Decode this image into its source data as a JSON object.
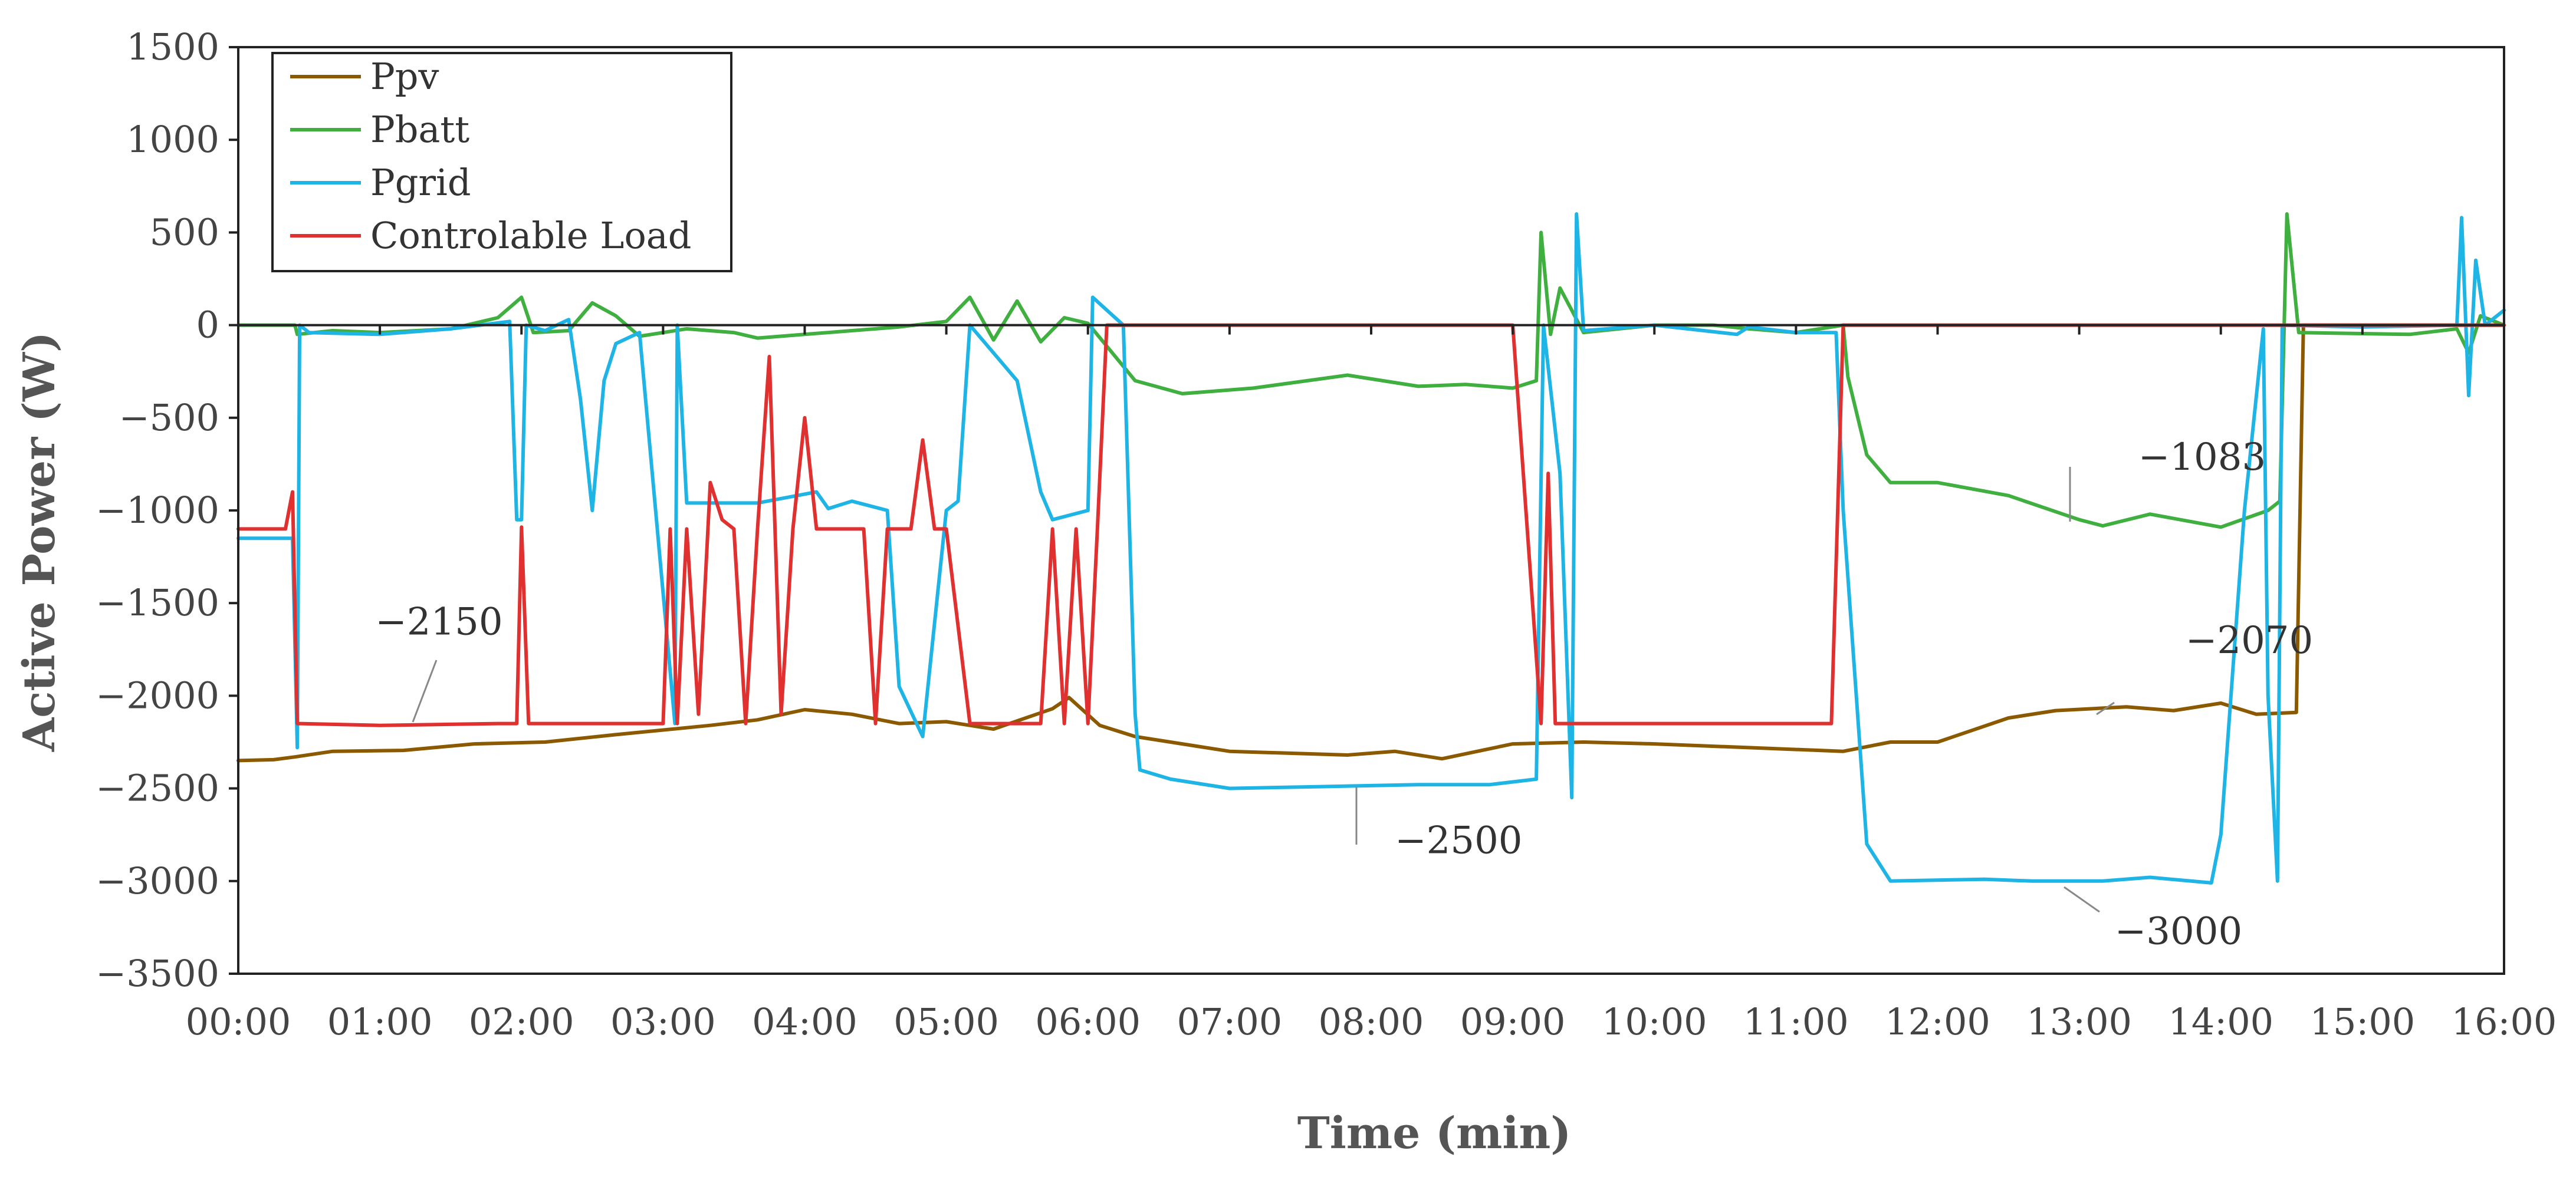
{
  "chart_data": {
    "type": "line",
    "xlabel": "Time (min)",
    "ylabel": "Active Power (W)",
    "xlim": [
      0,
      960
    ],
    "ylim": [
      -3500,
      1500
    ],
    "x_ticks": [
      {
        "label": "00:00",
        "value": 0
      },
      {
        "label": "01:00",
        "value": 60
      },
      {
        "label": "02:00",
        "value": 120
      },
      {
        "label": "03:00",
        "value": 180
      },
      {
        "label": "04:00",
        "value": 240
      },
      {
        "label": "05:00",
        "value": 300
      },
      {
        "label": "06:00",
        "value": 360
      },
      {
        "label": "07:00",
        "value": 420
      },
      {
        "label": "08:00",
        "value": 480
      },
      {
        "label": "09:00",
        "value": 540
      },
      {
        "label": "10:00",
        "value": 600
      },
      {
        "label": "11:00",
        "value": 660
      },
      {
        "label": "12:00",
        "value": 720
      },
      {
        "label": "13:00",
        "value": 780
      },
      {
        "label": "14:00",
        "value": 840
      },
      {
        "label": "15:00",
        "value": 900
      },
      {
        "label": "16:00",
        "value": 960
      }
    ],
    "y_ticks": [
      1500,
      1000,
      500,
      0,
      -500,
      -1000,
      -1500,
      -2000,
      -2500,
      -3000,
      -3500
    ],
    "legend_position": "top-left",
    "series": [
      {
        "name": "Ppv",
        "color": "#8B5A00",
        "points": [
          [
            0,
            -2350
          ],
          [
            15,
            -2345
          ],
          [
            24,
            -2330
          ],
          [
            40,
            -2300
          ],
          [
            70,
            -2295
          ],
          [
            100,
            -2260
          ],
          [
            130,
            -2250
          ],
          [
            160,
            -2210
          ],
          [
            200,
            -2160
          ],
          [
            220,
            -2130
          ],
          [
            240,
            -2075
          ],
          [
            260,
            -2100
          ],
          [
            280,
            -2150
          ],
          [
            300,
            -2140
          ],
          [
            320,
            -2180
          ],
          [
            345,
            -2070
          ],
          [
            352,
            -2010
          ],
          [
            365,
            -2160
          ],
          [
            380,
            -2220
          ],
          [
            420,
            -2300
          ],
          [
            470,
            -2320
          ],
          [
            490,
            -2300
          ],
          [
            510,
            -2340
          ],
          [
            540,
            -2260
          ],
          [
            570,
            -2250
          ],
          [
            600,
            -2260
          ],
          [
            640,
            -2280
          ],
          [
            680,
            -2300
          ],
          [
            700,
            -2250
          ],
          [
            720,
            -2250
          ],
          [
            750,
            -2120
          ],
          [
            770,
            -2080
          ],
          [
            800,
            -2060
          ],
          [
            820,
            -2080
          ],
          [
            840,
            -2040
          ],
          [
            855,
            -2100
          ],
          [
            872,
            -2090
          ],
          [
            875,
            0
          ],
          [
            960,
            0
          ]
        ]
      },
      {
        "name": "Pbatt",
        "color": "#3FAF3F",
        "points": [
          [
            0,
            0
          ],
          [
            24,
            0
          ],
          [
            25,
            -50
          ],
          [
            40,
            -30
          ],
          [
            60,
            -40
          ],
          [
            90,
            -20
          ],
          [
            110,
            40
          ],
          [
            120,
            150
          ],
          [
            125,
            -40
          ],
          [
            140,
            -30
          ],
          [
            150,
            120
          ],
          [
            160,
            50
          ],
          [
            170,
            -60
          ],
          [
            190,
            -20
          ],
          [
            210,
            -40
          ],
          [
            220,
            -70
          ],
          [
            240,
            -50
          ],
          [
            260,
            -30
          ],
          [
            280,
            -10
          ],
          [
            300,
            20
          ],
          [
            310,
            150
          ],
          [
            320,
            -80
          ],
          [
            330,
            130
          ],
          [
            340,
            -90
          ],
          [
            350,
            40
          ],
          [
            360,
            10
          ],
          [
            380,
            -300
          ],
          [
            400,
            -370
          ],
          [
            430,
            -340
          ],
          [
            470,
            -270
          ],
          [
            500,
            -330
          ],
          [
            520,
            -320
          ],
          [
            540,
            -340
          ],
          [
            550,
            -300
          ],
          [
            552,
            500
          ],
          [
            556,
            -50
          ],
          [
            560,
            200
          ],
          [
            570,
            -40
          ],
          [
            600,
            0
          ],
          [
            625,
            0
          ],
          [
            640,
            -20
          ],
          [
            660,
            -40
          ],
          [
            680,
            0
          ],
          [
            682,
            -280
          ],
          [
            690,
            -700
          ],
          [
            700,
            -850
          ],
          [
            720,
            -850
          ],
          [
            750,
            -920
          ],
          [
            780,
            -1050
          ],
          [
            790,
            -1083
          ],
          [
            810,
            -1020
          ],
          [
            840,
            -1090
          ],
          [
            860,
            -1000
          ],
          [
            865,
            -950
          ],
          [
            868,
            600
          ],
          [
            873,
            -40
          ],
          [
            920,
            -50
          ],
          [
            940,
            -20
          ],
          [
            945,
            -150
          ],
          [
            950,
            50
          ],
          [
            960,
            0
          ]
        ]
      },
      {
        "name": "Pgrid",
        "color": "#1EB4E6",
        "points": [
          [
            0,
            -1150
          ],
          [
            23,
            -1150
          ],
          [
            25,
            -2280
          ],
          [
            26,
            0
          ],
          [
            30,
            -40
          ],
          [
            60,
            -50
          ],
          [
            90,
            -20
          ],
          [
            115,
            20
          ],
          [
            118,
            -1050
          ],
          [
            120,
            -1050
          ],
          [
            122,
            0
          ],
          [
            130,
            -30
          ],
          [
            140,
            30
          ],
          [
            145,
            -400
          ],
          [
            150,
            -1000
          ],
          [
            155,
            -300
          ],
          [
            160,
            -100
          ],
          [
            170,
            -40
          ],
          [
            185,
            -2150
          ],
          [
            186,
            0
          ],
          [
            190,
            -960
          ],
          [
            220,
            -960
          ],
          [
            245,
            -900
          ],
          [
            250,
            -990
          ],
          [
            260,
            -950
          ],
          [
            275,
            -1000
          ],
          [
            280,
            -1950
          ],
          [
            290,
            -2220
          ],
          [
            300,
            -1000
          ],
          [
            305,
            -950
          ],
          [
            310,
            0
          ],
          [
            330,
            -300
          ],
          [
            340,
            -900
          ],
          [
            345,
            -1050
          ],
          [
            360,
            -1000
          ],
          [
            362,
            150
          ],
          [
            375,
            0
          ],
          [
            380,
            -2100
          ],
          [
            382,
            -2400
          ],
          [
            395,
            -2450
          ],
          [
            420,
            -2500
          ],
          [
            460,
            -2490
          ],
          [
            500,
            -2480
          ],
          [
            530,
            -2480
          ],
          [
            550,
            -2450
          ],
          [
            553,
            0
          ],
          [
            560,
            -800
          ],
          [
            565,
            -2550
          ],
          [
            567,
            600
          ],
          [
            570,
            -30
          ],
          [
            600,
            0
          ],
          [
            635,
            -50
          ],
          [
            640,
            -10
          ],
          [
            660,
            -40
          ],
          [
            677,
            -40
          ],
          [
            680,
            -1000
          ],
          [
            690,
            -2800
          ],
          [
            700,
            -3000
          ],
          [
            740,
            -2990
          ],
          [
            760,
            -3000
          ],
          [
            790,
            -3000
          ],
          [
            810,
            -2980
          ],
          [
            836,
            -3010
          ],
          [
            840,
            -2750
          ],
          [
            850,
            -1000
          ],
          [
            858,
            -20
          ],
          [
            860,
            -2000
          ],
          [
            864,
            -3000
          ],
          [
            866,
            0
          ],
          [
            900,
            -10
          ],
          [
            940,
            0
          ],
          [
            942,
            580
          ],
          [
            945,
            -380
          ],
          [
            948,
            350
          ],
          [
            952,
            0
          ],
          [
            960,
            80
          ]
        ]
      },
      {
        "name": "Controlable Load",
        "color": "#E03030",
        "points": [
          [
            0,
            -1100
          ],
          [
            20,
            -1100
          ],
          [
            23,
            -900
          ],
          [
            25,
            -2150
          ],
          [
            60,
            -2160
          ],
          [
            110,
            -2150
          ],
          [
            118,
            -2150
          ],
          [
            120,
            -1090
          ],
          [
            123,
            -2150
          ],
          [
            150,
            -2150
          ],
          [
            170,
            -2150
          ],
          [
            180,
            -2150
          ],
          [
            183,
            -1100
          ],
          [
            186,
            -2150
          ],
          [
            190,
            -1100
          ],
          [
            195,
            -2100
          ],
          [
            200,
            -850
          ],
          [
            205,
            -1050
          ],
          [
            210,
            -1100
          ],
          [
            215,
            -2150
          ],
          [
            220,
            -1100
          ],
          [
            225,
            -170
          ],
          [
            230,
            -2100
          ],
          [
            235,
            -1100
          ],
          [
            240,
            -500
          ],
          [
            245,
            -1100
          ],
          [
            265,
            -1100
          ],
          [
            270,
            -2150
          ],
          [
            275,
            -1100
          ],
          [
            285,
            -1100
          ],
          [
            290,
            -620
          ],
          [
            295,
            -1100
          ],
          [
            300,
            -1100
          ],
          [
            310,
            -2150
          ],
          [
            330,
            -2150
          ],
          [
            340,
            -2150
          ],
          [
            345,
            -1100
          ],
          [
            350,
            -2150
          ],
          [
            355,
            -1100
          ],
          [
            360,
            -2150
          ],
          [
            364,
            -1100
          ],
          [
            368,
            0
          ],
          [
            540,
            0
          ],
          [
            552,
            -2150
          ],
          [
            555,
            -800
          ],
          [
            558,
            -2150
          ],
          [
            570,
            -2150
          ],
          [
            590,
            -2150
          ],
          [
            600,
            -2150
          ],
          [
            620,
            -2150
          ],
          [
            640,
            -2150
          ],
          [
            660,
            -2150
          ],
          [
            675,
            -2150
          ],
          [
            680,
            0
          ],
          [
            960,
            0
          ]
        ]
      }
    ],
    "annotations": [
      {
        "text": "−2150",
        "x": 58,
        "y": -1670
      },
      {
        "text": "−2500",
        "x": 490,
        "y": -2850
      },
      {
        "text": "−1083",
        "x": 805,
        "y": -780
      },
      {
        "text": "−2070",
        "x": 825,
        "y": -1770
      },
      {
        "text": "−3000",
        "x": 795,
        "y": -3340
      }
    ]
  }
}
